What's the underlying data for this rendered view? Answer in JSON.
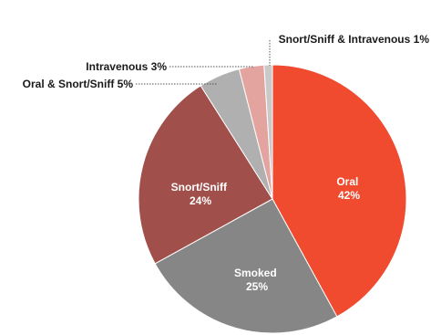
{
  "chart_data": {
    "type": "pie",
    "slices": [
      {
        "label": "Oral",
        "value": 42,
        "value_text": "42%",
        "color": "#f04a2f"
      },
      {
        "label": "Smoked",
        "value": 25,
        "value_text": "25%",
        "color": "#868686"
      },
      {
        "label": "Snort/Sniff",
        "value": 24,
        "value_text": "24%",
        "color": "#a04f4a"
      },
      {
        "label": "Oral & Snort/Sniff",
        "value": 5,
        "value_text": "5%",
        "color": "#b0b0b0"
      },
      {
        "label": "Intravenous",
        "value": 3,
        "value_text": "3%",
        "color": "#e3a39f"
      },
      {
        "label": "Snort/Sniff & Intravenous",
        "value": 1,
        "value_text": "1%",
        "color": "#c9c9c9"
      }
    ],
    "outside_labels": [
      "Oral & Snort/Sniff 5%",
      "Intravenous 3%",
      "Snort/Sniff & Intravenous 1%"
    ]
  }
}
